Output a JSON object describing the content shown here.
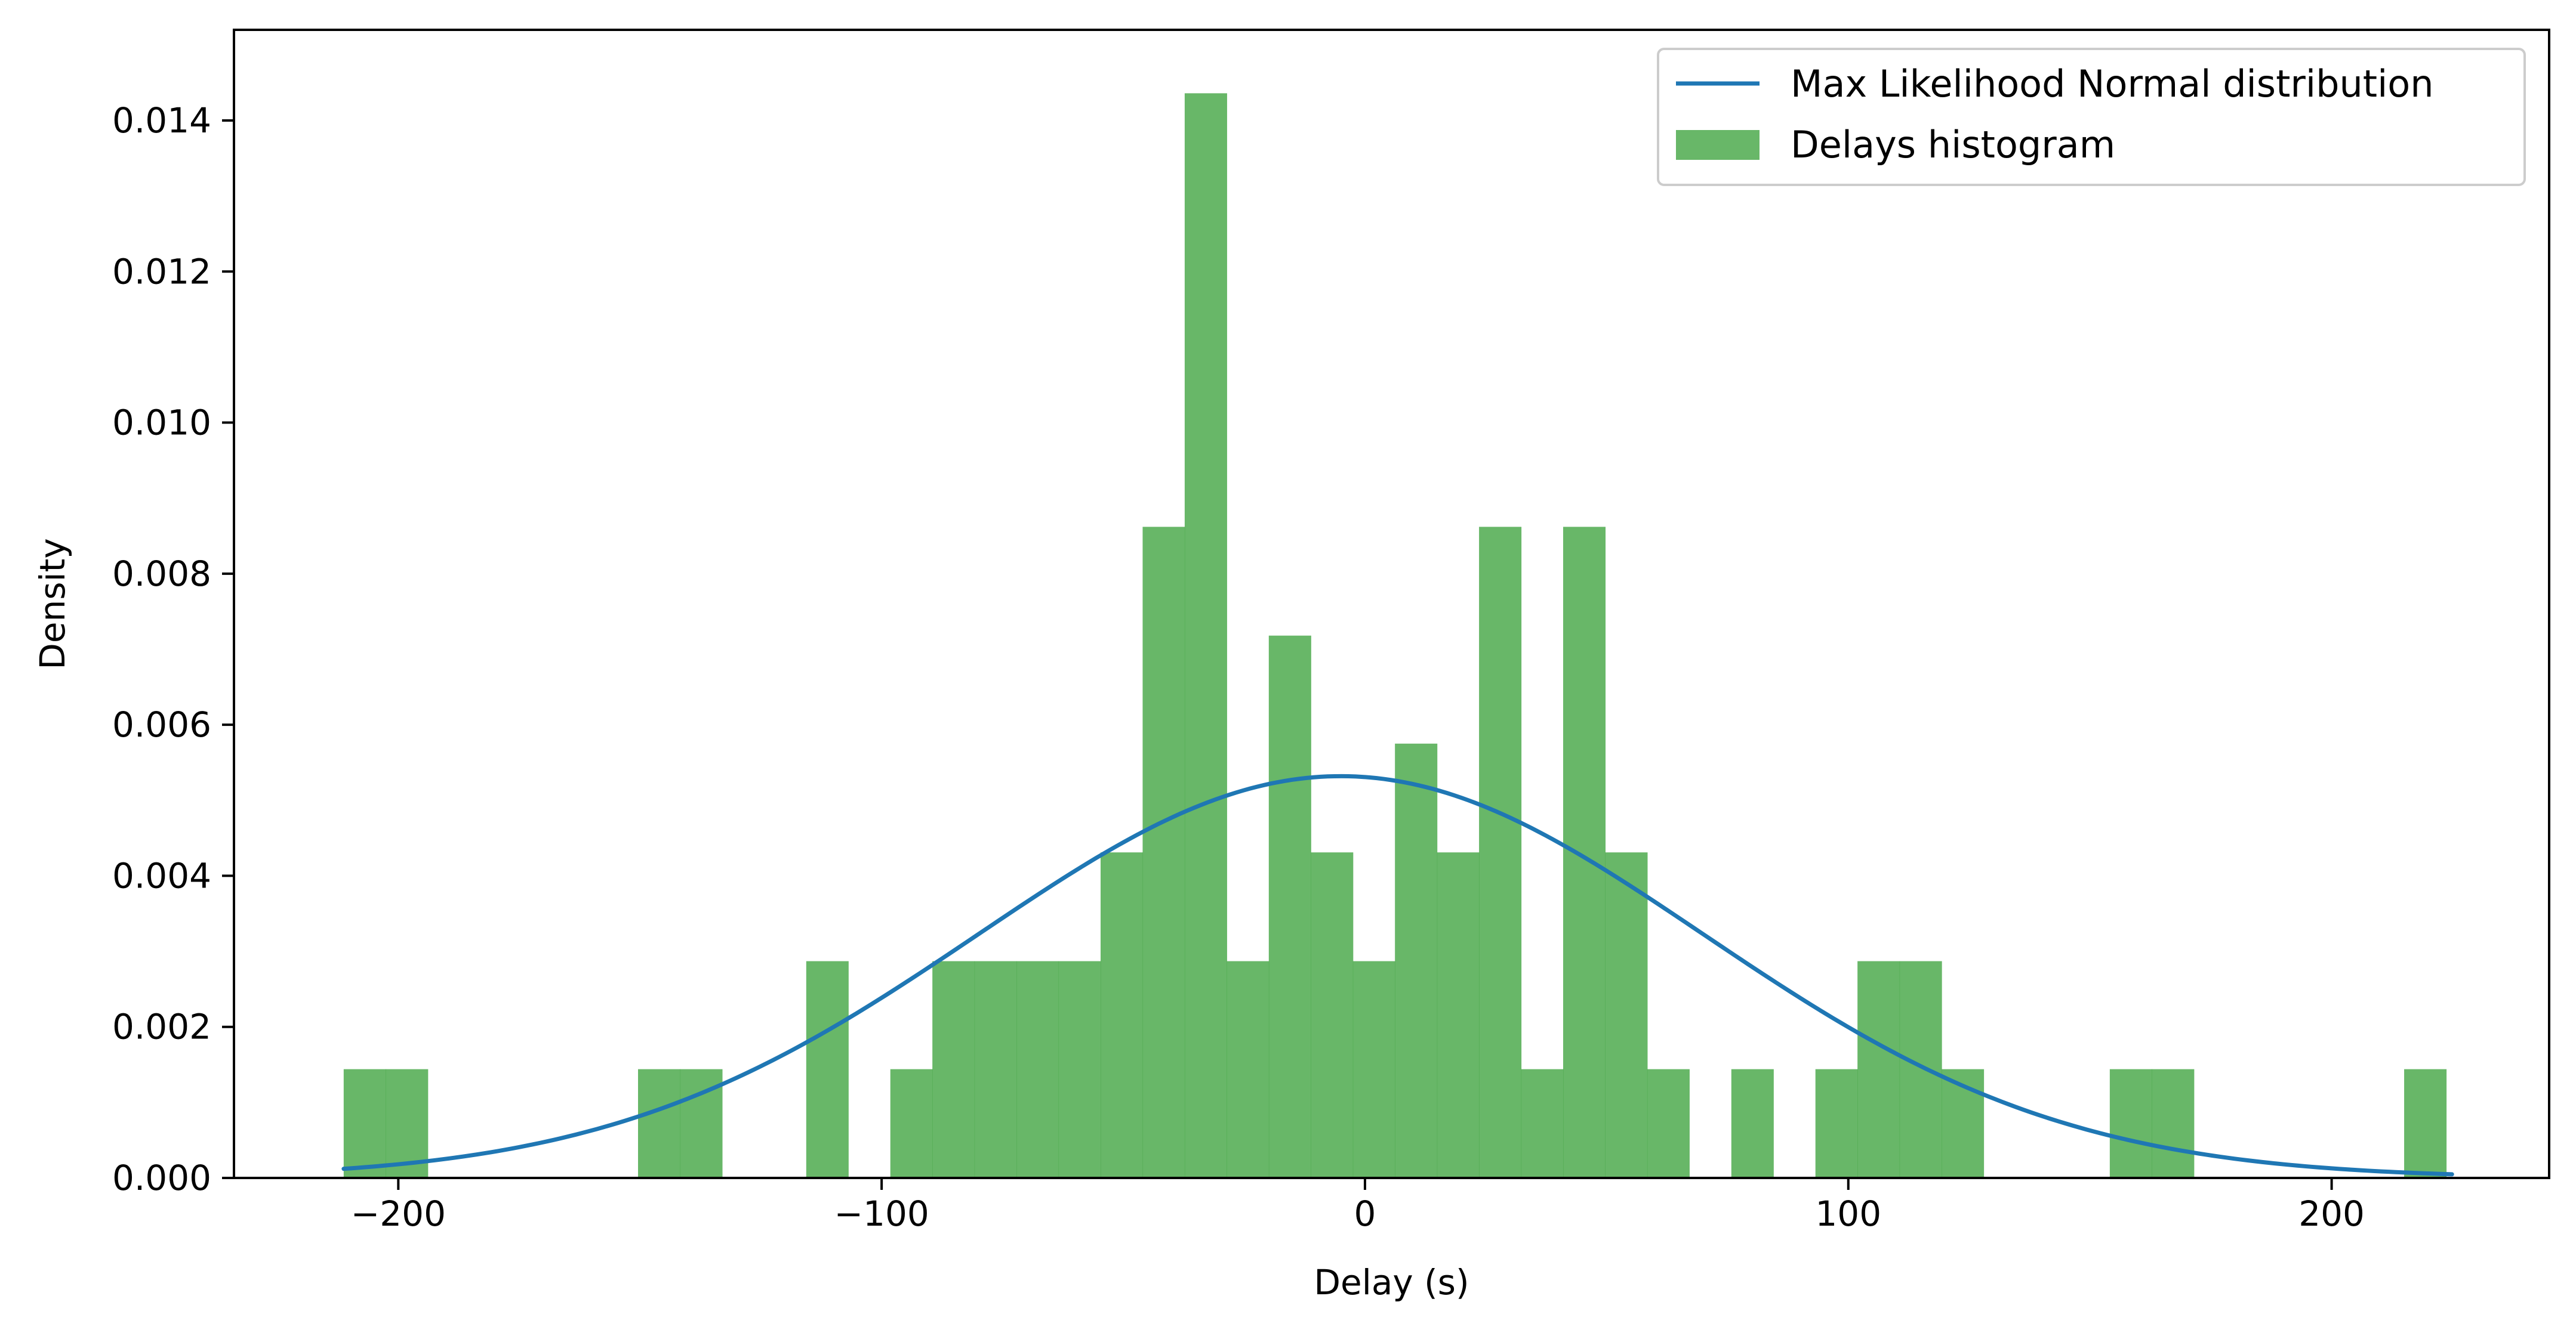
{
  "chart_data": {
    "type": "bar",
    "title": "",
    "xlabel": "Delay (s)",
    "ylabel": "Density",
    "xlim": [
      -234,
      245
    ],
    "ylim": [
      0,
      0.0152
    ],
    "grid": false,
    "legend_position": "top-right",
    "x_ticks": [
      -200,
      -100,
      0,
      100,
      200
    ],
    "x_tick_labels": [
      "−200",
      "−100",
      "0",
      "100",
      "200"
    ],
    "y_ticks": [
      0,
      0.002,
      0.004,
      0.006,
      0.008,
      0.01,
      0.012,
      0.014
    ],
    "y_tick_labels": [
      "0.000",
      "0.002",
      "0.004",
      "0.006",
      "0.008",
      "0.010",
      "0.012",
      "0.014"
    ],
    "series": [
      {
        "name": "Delays histogram",
        "kind": "histogram",
        "color": "#4daa4d",
        "bin_start": -211.3,
        "bin_width": 8.7,
        "values": [
          0.00144,
          0.00144,
          0,
          0,
          0,
          0,
          0,
          0.00144,
          0.00144,
          0,
          0,
          0.00287,
          0,
          0.00144,
          0.00287,
          0.00287,
          0.00287,
          0.00287,
          0.00431,
          0.00862,
          0.01436,
          0.00287,
          0.00718,
          0.00431,
          0.00287,
          0.00575,
          0.00431,
          0.00862,
          0.00144,
          0.00862,
          0.00431,
          0.00144,
          0,
          0.00144,
          0,
          0.00144,
          0.00287,
          0.00287,
          0.00144,
          0,
          0,
          0,
          0.00144,
          0.00144,
          0,
          0,
          0,
          0,
          0,
          0.00144
        ]
      },
      {
        "name": "Max Likelihood Normal distribution",
        "kind": "line",
        "color": "#1f77b4",
        "mean": -5,
        "std": 75,
        "x_range": [
          -211.3,
          224.9
        ]
      }
    ]
  }
}
